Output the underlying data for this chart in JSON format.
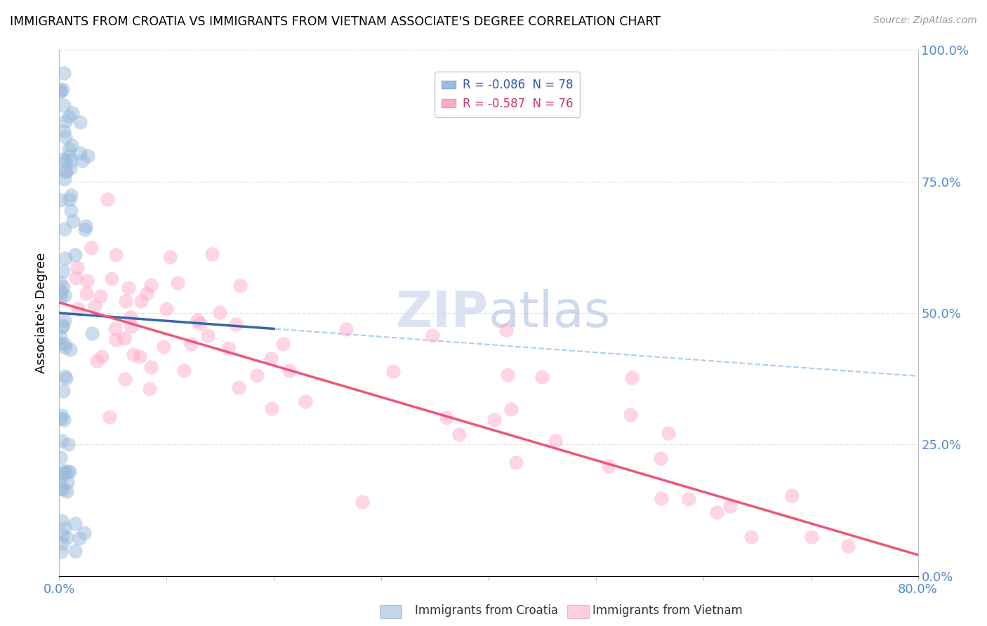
{
  "title": "IMMIGRANTS FROM CROATIA VS IMMIGRANTS FROM VIETNAM ASSOCIATE'S DEGREE CORRELATION CHART",
  "source": "Source: ZipAtlas.com",
  "ylabel": "Associate's Degree",
  "blue_color": "#99bbdd",
  "pink_color": "#ffaacc",
  "blue_line_color": "#3366aa",
  "pink_line_color": "#ee5577",
  "blue_dash_color": "#aaccee",
  "R_blue": -0.086,
  "N_blue": 78,
  "R_pink": -0.587,
  "N_pink": 76,
  "xlim": [
    0.0,
    0.8
  ],
  "ylim": [
    0.0,
    1.0
  ],
  "figsize": [
    14.06,
    8.92
  ],
  "dpi": 100
}
